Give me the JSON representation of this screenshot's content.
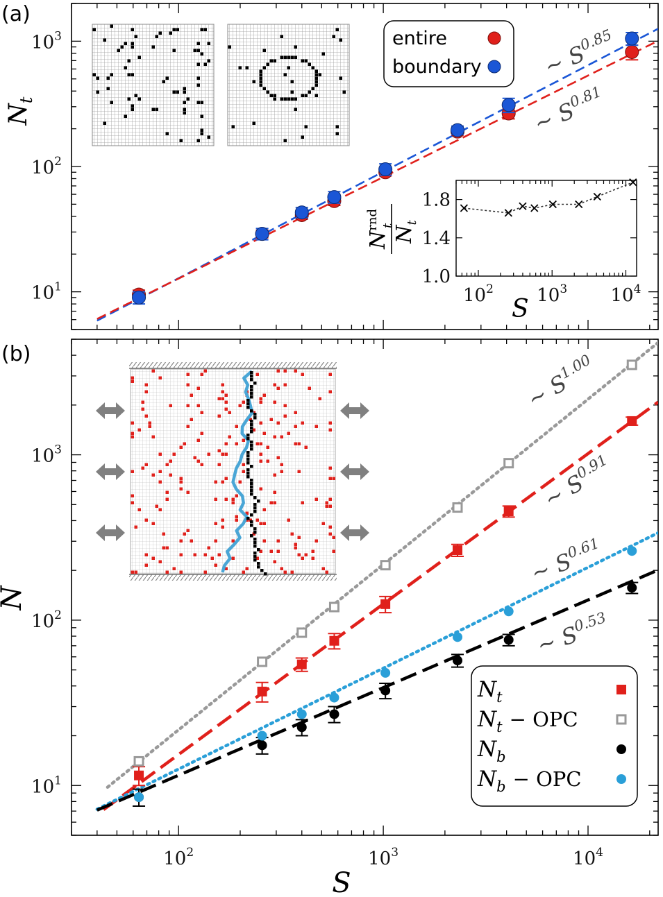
{
  "chart_data": [
    {
      "type": "scatter",
      "panel_label": "(a)",
      "xlabel": "",
      "ylabel": "N",
      "ylabel_sub": "t",
      "xscale": "log",
      "yscale": "log",
      "xlim": [
        30,
        22000
      ],
      "ylim": [
        5,
        2000
      ],
      "y_ticks": [
        {
          "value": 10,
          "base": "10",
          "exp": "1"
        },
        {
          "value": 100,
          "base": "10",
          "exp": "2"
        },
        {
          "value": 1000,
          "base": "10",
          "exp": "3"
        }
      ],
      "series": [
        {
          "name": "entire",
          "color": "#e0201b",
          "x": [
            64,
            256,
            400,
            576,
            1024,
            2304,
            4096,
            16384
          ],
          "y": [
            9.5,
            29,
            41,
            53,
            90,
            190,
            265,
            820
          ],
          "err": [
            0.8,
            2,
            3,
            4,
            6,
            12,
            25,
            110
          ]
        },
        {
          "name": "boundary",
          "color": "#1a56d6",
          "x": [
            64,
            256,
            400,
            576,
            1024,
            2304,
            4096,
            16384
          ],
          "y": [
            9,
            29,
            43,
            57,
            95,
            195,
            310,
            1050
          ],
          "err": [
            1,
            3,
            4,
            6,
            10,
            15,
            40,
            120
          ]
        }
      ],
      "fits": [
        {
          "label": "∼ S",
          "exponent": "0.85",
          "color": "#1a56d6",
          "dash": "dashed",
          "x_range": [
            40,
            22000
          ],
          "amp": 0.256,
          "pow": 0.85
        },
        {
          "label": "∼ S",
          "exponent": "0.81",
          "color": "#e0201b",
          "dash": "dashed",
          "x_range": [
            40,
            22000
          ],
          "amp": 0.306,
          "pow": 0.81
        }
      ],
      "legend": [
        "entire",
        "boundary"
      ],
      "legend_position": "top-right",
      "inset": {
        "type": "line",
        "xlabel": "S",
        "ylabel_top": "N",
        "ylabel_top_sup": "rnd",
        "ylabel_top_sub": "t",
        "ylabel_bottom": "N",
        "ylabel_bottom_sub": "t",
        "xscale": "log",
        "xlim": [
          50,
          14000
        ],
        "ylim": [
          1.0,
          2.0
        ],
        "y_ticks": [
          "1.8",
          "1.4",
          "1.0"
        ],
        "y_tick_values": [
          1.8,
          1.4,
          1.0
        ],
        "x_ticks": [
          {
            "value": 100,
            "base": "10",
            "exp": "2"
          },
          {
            "value": 1000,
            "base": "10",
            "exp": "3"
          },
          {
            "value": 10000,
            "base": "10",
            "exp": "4"
          }
        ],
        "x": [
          64,
          256,
          400,
          576,
          1024,
          2304,
          4096,
          12500
        ],
        "y": [
          1.71,
          1.66,
          1.73,
          1.71,
          1.75,
          1.75,
          1.83,
          1.98
        ]
      }
    },
    {
      "type": "scatter",
      "panel_label": "(b)",
      "xlabel": "S",
      "ylabel": "N",
      "xscale": "log",
      "yscale": "log",
      "xlim": [
        30,
        22000
      ],
      "ylim": [
        5,
        5000
      ],
      "x_ticks": [
        {
          "value": 100,
          "base": "10",
          "exp": "2"
        },
        {
          "value": 1000,
          "base": "10",
          "exp": "3"
        },
        {
          "value": 10000,
          "base": "10",
          "exp": "4"
        }
      ],
      "y_ticks": [
        {
          "value": 10,
          "base": "10",
          "exp": "1"
        },
        {
          "value": 100,
          "base": "10",
          "exp": "2"
        },
        {
          "value": 1000,
          "base": "10",
          "exp": "3"
        }
      ],
      "series": [
        {
          "name": "N_t",
          "legend_main": "N",
          "legend_sub": "t",
          "legend_suffix": "",
          "marker": "filled-square",
          "color": "#e0201b",
          "x": [
            64,
            256,
            400,
            576,
            1024,
            2304,
            4096,
            16384
          ],
          "y": [
            11.5,
            37,
            54,
            75,
            125,
            265,
            455,
            1600
          ],
          "err": [
            1.5,
            5,
            5,
            8,
            14,
            22,
            35,
            90
          ]
        },
        {
          "name": "N_t - OPC",
          "legend_main": "N",
          "legend_sub": "t",
          "legend_suffix": "− OPC",
          "marker": "open-square",
          "color": "#999999",
          "x": [
            64,
            256,
            400,
            576,
            1024,
            2304,
            4096,
            16384
          ],
          "y": [
            14,
            56,
            84,
            120,
            215,
            480,
            890,
            3500
          ],
          "err": [
            0,
            0,
            0,
            0,
            0,
            0,
            0,
            0
          ]
        },
        {
          "name": "N_b",
          "legend_main": "N",
          "legend_sub": "b",
          "legend_suffix": "",
          "marker": "filled-circle",
          "color": "#000000",
          "x": [
            64,
            256,
            400,
            576,
            1024,
            2304,
            4096,
            16384
          ],
          "y": [
            8.5,
            17.5,
            22.5,
            27,
            37.5,
            57,
            76,
            157
          ],
          "err": [
            1,
            2,
            2.5,
            3,
            4,
            5,
            6,
            12
          ]
        },
        {
          "name": "N_b - OPC",
          "legend_main": "N",
          "legend_sub": "b",
          "legend_suffix": "− OPC",
          "marker": "filled-circle",
          "color": "#2a9fd8",
          "x": [
            64,
            256,
            400,
            576,
            1024,
            2304,
            4096,
            16384
          ],
          "y": [
            8.5,
            20,
            27,
            34,
            48,
            79,
            113,
            262
          ],
          "err": [
            0,
            0,
            0,
            0,
            0,
            0,
            0,
            0
          ]
        }
      ],
      "fits": [
        {
          "label": "∼ S",
          "exponent": "1.00",
          "color": "#999999",
          "dash": "dotted",
          "x_range": [
            45,
            22000
          ],
          "amp": 0.217,
          "pow": 1.0
        },
        {
          "label": "∼ S",
          "exponent": "0.91",
          "color": "#e0201b",
          "dash": "longdash",
          "x_range": [
            43,
            22000
          ],
          "amp": 0.233,
          "pow": 0.91
        },
        {
          "label": "∼ S",
          "exponent": "0.61",
          "color": "#2a9fd8",
          "dash": "dotted",
          "x_range": [
            40,
            22000
          ],
          "amp": 0.757,
          "pow": 0.61
        },
        {
          "label": "∼ S",
          "exponent": "0.53",
          "color": "#000000",
          "dash": "longdash",
          "x_range": [
            40,
            22000
          ],
          "amp": 1.004,
          "pow": 0.53
        }
      ],
      "legend_position": "bottom-right"
    }
  ]
}
